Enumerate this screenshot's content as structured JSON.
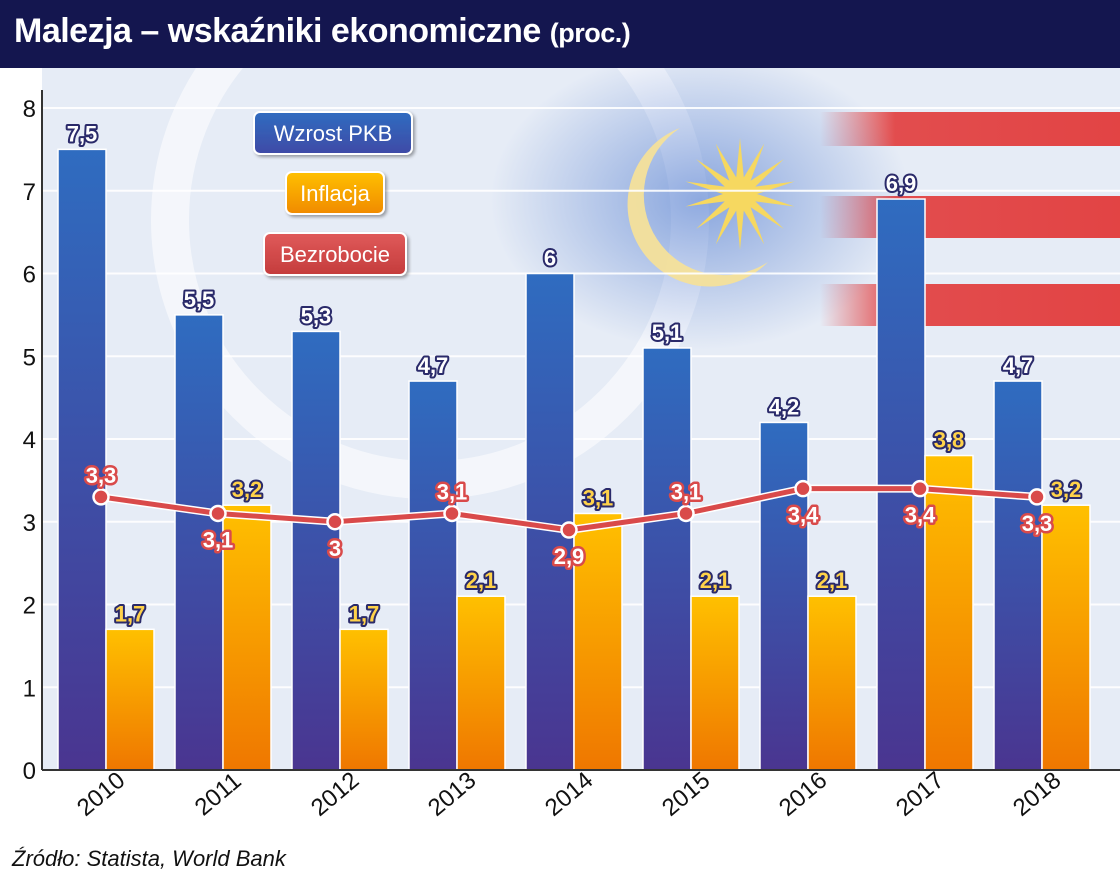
{
  "title": "Malezja – wskaźniki ekonomiczne",
  "title_unit": "(proc.)",
  "source": "Źródło: Statista, World Bank",
  "colors": {
    "title_bar": "#14164f",
    "gdp_top": "#2f6cc0",
    "gdp_bottom": "#4a3590",
    "inflation_top": "#ffc000",
    "inflation_bottom": "#ef7700",
    "unemployment": "#d94a4a",
    "label_outline": "#2a2a6a"
  },
  "chart_data": {
    "type": "bar",
    "categories": [
      "2010",
      "2011",
      "2012",
      "2013",
      "2014",
      "2015",
      "2016",
      "2017",
      "2018"
    ],
    "series": [
      {
        "name": "Wzrost PKB",
        "type": "bar",
        "values": [
          7.5,
          5.5,
          5.3,
          4.7,
          6,
          5.1,
          4.2,
          6.9,
          4.7
        ],
        "labels": [
          "7,5",
          "5,5",
          "5,3",
          "4,7",
          "6",
          "5,1",
          "4,2",
          "6,9",
          "4,7"
        ]
      },
      {
        "name": "Inflacja",
        "type": "bar",
        "values": [
          1.7,
          3.2,
          1.7,
          2.1,
          3.1,
          2.1,
          2.1,
          3.8,
          3.2
        ],
        "labels": [
          "1,7",
          "3,2",
          "1,7",
          "2,1",
          "3,1",
          "2,1",
          "2,1",
          "3,8",
          "3,2"
        ]
      },
      {
        "name": "Bezrobocie",
        "type": "line",
        "values": [
          3.3,
          3.1,
          3.0,
          3.1,
          2.9,
          3.1,
          3.4,
          3.4,
          3.3
        ],
        "labels": [
          "3,3",
          "3,1",
          "3",
          "3,1",
          "2,9",
          "3,1",
          "3,4",
          "3,4",
          "3,3"
        ]
      }
    ],
    "y_ticks": [
      "0",
      "1",
      "2",
      "3",
      "4",
      "5",
      "6",
      "7",
      "8"
    ],
    "ylim": [
      0,
      8
    ],
    "grid": true,
    "legend": "top-left"
  }
}
